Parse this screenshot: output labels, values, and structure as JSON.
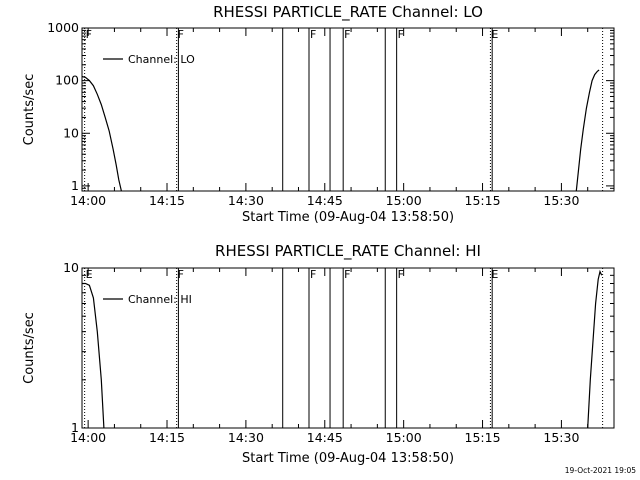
{
  "footer": {
    "timestamp": "19-Oct-2021 19:05"
  },
  "chart_data": [
    {
      "type": "line",
      "title": "RHESSI PARTICLE_RATE Channel: LO",
      "xlabel": "Start Time (09-Aug-04 13:58:50)",
      "ylabel": "Counts/sec",
      "yscale": "log",
      "xlim": [
        "13:58:50",
        "15:40:00"
      ],
      "ylim": [
        0.8,
        1000
      ],
      "x_ticks": [
        "14:00",
        "14:15",
        "14:30",
        "14:45",
        "15:00",
        "15:15",
        "15:30"
      ],
      "y_ticks": [
        "1",
        "10",
        "100",
        "1000"
      ],
      "legend": {
        "position": "top-left",
        "label": "Channel: LO"
      },
      "series": [
        {
          "name": "Channel: LO",
          "segments": [
            {
              "x": [
                "13:58:50",
                "13:59:30",
                "14:00:15",
                "14:01:00",
                "14:01:45",
                "14:02:30",
                "14:03:15",
                "14:04:00",
                "14:04:45",
                "14:05:20",
                "14:05:50",
                "14:06:20"
              ],
              "y": [
                120,
                115,
                100,
                80,
                55,
                35,
                20,
                11,
                5,
                2.5,
                1.3,
                0.8
              ]
            },
            {
              "x": [
                "15:32:50",
                "15:33:15",
                "15:33:40",
                "15:34:10",
                "15:34:45",
                "15:35:20",
                "15:35:50",
                "15:36:20",
                "15:36:50",
                "15:37:10"
              ],
              "y": [
                0.8,
                2,
                5,
                12,
                30,
                60,
                100,
                130,
                150,
                160
              ]
            }
          ]
        }
      ],
      "markers": [
        {
          "time": "13:59:20",
          "label": "F",
          "style": "dotted"
        },
        {
          "time": "14:16:50",
          "label": "F",
          "style": "dotted"
        },
        {
          "time": "14:17:10",
          "label": "",
          "style": "solid"
        },
        {
          "time": "14:37:00",
          "label": "",
          "style": "solid"
        },
        {
          "time": "14:42:00",
          "label": "F",
          "style": "solid"
        },
        {
          "time": "14:46:00",
          "label": "",
          "style": "solid"
        },
        {
          "time": "14:48:30",
          "label": "F",
          "style": "solid"
        },
        {
          "time": "14:56:30",
          "label": "",
          "style": "solid"
        },
        {
          "time": "14:58:40",
          "label": "F",
          "style": "solid"
        },
        {
          "time": "15:16:30",
          "label": "E",
          "style": "dotted"
        },
        {
          "time": "15:16:50",
          "label": "",
          "style": "solid"
        },
        {
          "time": "15:37:50",
          "label": "",
          "style": "dotted"
        }
      ]
    },
    {
      "type": "line",
      "title": "RHESSI PARTICLE_RATE Channel: HI",
      "xlabel": "Start Time (09-Aug-04 13:58:50)",
      "ylabel": "Counts/sec",
      "yscale": "log",
      "xlim": [
        "13:58:50",
        "15:40:00"
      ],
      "ylim": [
        1,
        10
      ],
      "x_ticks": [
        "14:00",
        "14:15",
        "14:30",
        "14:45",
        "15:00",
        "15:15",
        "15:30"
      ],
      "y_ticks": [
        "1",
        "10"
      ],
      "legend": {
        "position": "top-left",
        "label": "Channel: HI"
      },
      "series": [
        {
          "name": "Channel: HI",
          "segments": [
            {
              "x": [
                "13:58:50",
                "13:59:30",
                "14:00:15",
                "14:01:00",
                "14:01:45",
                "14:02:30",
                "14:03:00"
              ],
              "y": [
                8.0,
                8.0,
                7.8,
                6.5,
                4.0,
                2.0,
                0.9
              ]
            },
            {
              "x": [
                "15:35:00",
                "15:35:30",
                "15:36:00",
                "15:36:30",
                "15:37:00",
                "15:37:20",
                "15:37:40"
              ],
              "y": [
                0.9,
                2.0,
                3.5,
                6.0,
                8.5,
                9.5,
                9.0
              ]
            }
          ]
        }
      ],
      "markers": [
        {
          "time": "13:59:20",
          "label": "E",
          "style": "dotted"
        },
        {
          "time": "14:16:50",
          "label": "F",
          "style": "dotted"
        },
        {
          "time": "14:17:10",
          "label": "",
          "style": "solid"
        },
        {
          "time": "14:37:00",
          "label": "",
          "style": "solid"
        },
        {
          "time": "14:42:00",
          "label": "F",
          "style": "solid"
        },
        {
          "time": "14:46:00",
          "label": "",
          "style": "solid"
        },
        {
          "time": "14:48:30",
          "label": "F",
          "style": "solid"
        },
        {
          "time": "14:56:30",
          "label": "",
          "style": "solid"
        },
        {
          "time": "14:58:40",
          "label": "F",
          "style": "solid"
        },
        {
          "time": "15:16:30",
          "label": "E",
          "style": "dotted"
        },
        {
          "time": "15:16:50",
          "label": "",
          "style": "solid"
        },
        {
          "time": "15:37:50",
          "label": "",
          "style": "dotted"
        }
      ]
    }
  ]
}
